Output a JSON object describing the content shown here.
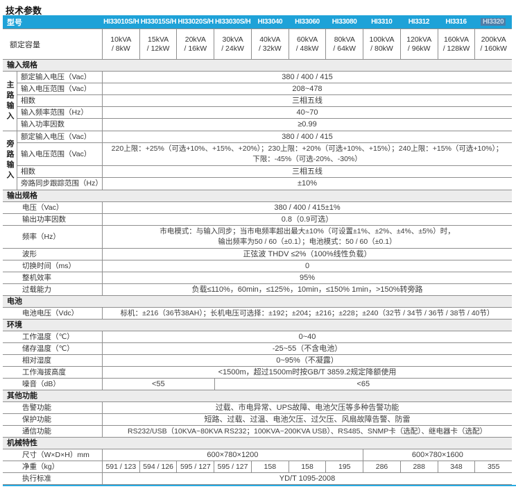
{
  "title": "技术参数",
  "colors": {
    "header_bg": "#1ea2d8",
    "selected_bg": "#4e7ea8",
    "section_bg": "#ececec",
    "border": "#8e8e8e",
    "bottom_line": "#29abe2"
  },
  "header": {
    "label": "型号",
    "models": [
      "HI33010S/H",
      "HI33015S/H",
      "HI33020S/H",
      "HI33030S/H",
      "HI33040",
      "HI33060",
      "HI33080",
      "HI3310",
      "HI3312",
      "HI3316",
      "HI3320"
    ],
    "selected_model": "HI3320"
  },
  "capacity": {
    "label": "额定容量",
    "kva": [
      "10kVA",
      "15kVA",
      "20kVA",
      "30kVA",
      "40kVA",
      "60kVA",
      "80kVA",
      "100kVA",
      "120kVA",
      "160kVA",
      "200kVA"
    ],
    "kw": [
      "/ 8kW",
      "/ 12kW",
      "/ 16kW",
      "/ 24kW",
      "/ 32kW",
      "/ 48kW",
      "/ 64kW",
      "/ 80kW",
      "/ 96kW",
      "/ 128kW",
      "/ 160kW"
    ]
  },
  "sections": {
    "input": "输入规格",
    "output": "输出规格",
    "battery": "电池",
    "environment": "环境",
    "other": "其他功能",
    "mechanical": "机械特性"
  },
  "main_input": {
    "group_label": "主路输入",
    "rows": [
      {
        "label": "额定输入电压（Vac）",
        "value": "380 / 400 / 415"
      },
      {
        "label": "输入电压范围（Vac）",
        "value": "208~478"
      },
      {
        "label": "相数",
        "value": "三相五线"
      },
      {
        "label": "输入频率范围（Hz）",
        "value": "40~70"
      },
      {
        "label": "输入功率因数",
        "value": "≥0.99"
      }
    ]
  },
  "bypass_input": {
    "group_label": "旁路输入",
    "rated": {
      "label": "额定输入电压（Vac）",
      "value": "380 / 400 / 415"
    },
    "range": {
      "label": "输入电压范围（Vac）",
      "line1": "220上限：+25%（可选+10%、+15%、+20%）；230上限：+20%（可选+10%、+15%）；240上限：+15%（可选+10%）；",
      "line2": "下限：-45%（可选-20%、-30%）"
    },
    "phase": {
      "label": "相数",
      "value": "三相五线"
    },
    "sync": {
      "label": "旁路同步跟踪范围（Hz）",
      "value": "±10%"
    }
  },
  "output": {
    "voltage": {
      "label": "电压（Vac）",
      "value": "380 / 400 / 415±1%"
    },
    "pf": {
      "label": "输出功率因数",
      "value": "0.8（0.9可选）"
    },
    "freq": {
      "label": "频率（Hz）",
      "line1": "市电模式：与输入同步；当市电频率超出最大±10%（可设置±1%、±2%、±4%、±5%）时，",
      "line2": "输出频率为50 / 60（±0.1）；电池模式：50 / 60（±0.1）"
    },
    "wave": {
      "label": "波形",
      "value": "正弦波 THDV ≤2%（100%线性负载）"
    },
    "transfer": {
      "label": "切换时间（ms）",
      "value": "0"
    },
    "efficiency": {
      "label": "整机效率",
      "value": "95%"
    },
    "overload": {
      "label": "过载能力",
      "value": "负载≤110%，60min，≤125%，10min，≤150% 1min，>150%转旁路"
    }
  },
  "battery": {
    "voltage": {
      "label": "电池电压（Vdc）",
      "value": "标机：±216（36节38AH）；长机电压可选择：±192；±204；±216；±228；±240（32节 / 34节 / 36节 / 38节 / 40节）"
    }
  },
  "environment": {
    "work_temp": {
      "label": "工作温度（℃）",
      "value": "0~40"
    },
    "storage_temp": {
      "label": "储存温度（℃）",
      "value": "-25~55（不含电池）"
    },
    "humidity": {
      "label": "相对湿度",
      "value": "0~95%（不凝露）"
    },
    "altitude": {
      "label": "工作海拔高度",
      "value": "<1500m，超过1500m时按GB/T 3859.2规定降额使用"
    },
    "noise": {
      "label": "噪音（dB）",
      "left": "<55",
      "right": "<65"
    }
  },
  "other": {
    "alarm": {
      "label": "告警功能",
      "value": "过载、市电异常、UPS故障、电池欠压等多种告警功能"
    },
    "protection": {
      "label": "保护功能",
      "value": "短路、过载、过温、电池欠压、过欠压、风扇故障告警、防雷"
    },
    "communication": {
      "label": "通信功能",
      "value": "RS232/USB（10KVA~80KVA RS232；100KVA~200KVA USB）、RS485、SNMP卡（选配）、继电器卡（选配）"
    }
  },
  "mechanical": {
    "dimensions": {
      "label": "尺寸（W×D×H）mm",
      "left": "600×780×1200",
      "right": "600×780×1600"
    },
    "weight": {
      "label": "净重（kg）",
      "values": [
        "591 / 123",
        "594 / 126",
        "595 / 127",
        "595 / 127",
        "158",
        "158",
        "195",
        "286",
        "288",
        "348",
        "355"
      ]
    },
    "standard": {
      "label": "执行标准",
      "value": "YD/T 1095-2008"
    }
  }
}
